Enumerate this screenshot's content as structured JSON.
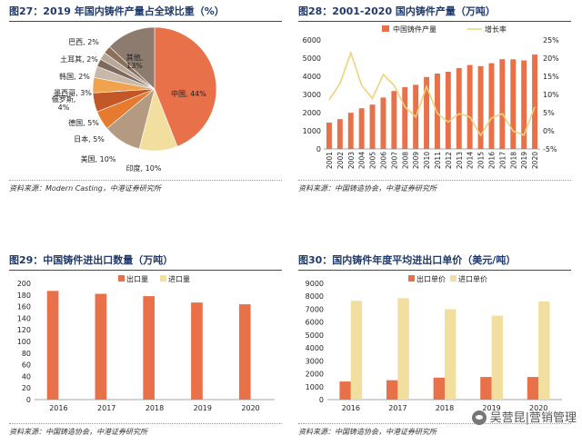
{
  "figure27": {
    "title": "图27：2019 年国内铸件产量占全球比重（%）",
    "source": "资料来源：Modern Casting，中港证券研究所",
    "chart_data": {
      "type": "pie",
      "title": "2019 年国内铸件产量占全球比重（%）",
      "slices": [
        {
          "label": "中国",
          "value": 44,
          "text": "中国, 44%",
          "color": "#e8714a"
        },
        {
          "label": "印度",
          "value": 10,
          "text": "印度, 10%",
          "color": "#f2dfa0"
        },
        {
          "label": "美国",
          "value": 10,
          "text": "美国, 10%",
          "color": "#b39a80"
        },
        {
          "label": "日本",
          "value": 5,
          "text": "日本, 5%",
          "color": "#e67a2e"
        },
        {
          "label": "德国",
          "value": 5,
          "text": "德国, 5%",
          "color": "#c25728"
        },
        {
          "label": "俄罗斯",
          "value": 4,
          "text": "俄罗斯,\n4%",
          "color": "#f0a24e"
        },
        {
          "label": "墨西哥",
          "value": 3,
          "text": "墨西哥, 3%",
          "color": "#c7b9aa"
        },
        {
          "label": "韩国",
          "value": 2,
          "text": "韩国, 2%",
          "color": "#7d6a5f"
        },
        {
          "label": "土耳其",
          "value": 2,
          "text": "土耳其, 2%",
          "color": "#b8a89a"
        },
        {
          "label": "巴西",
          "value": 2,
          "text": "巴西, 2%",
          "color": "#8a6f5a"
        },
        {
          "label": "其他",
          "value": 13,
          "text": "其他,\n13%",
          "color": "#8c7b6e"
        }
      ]
    }
  },
  "figure28": {
    "title": "图28：2001-2020 国内铸件产量（万吨）",
    "source": "资料来源：中国铸造协会，中港证券研究所",
    "chart_data": {
      "type": "bar",
      "categories": [
        "2001",
        "2002",
        "2003",
        "2004",
        "2005",
        "2006",
        "2007",
        "2008",
        "2009",
        "2010",
        "2011",
        "2012",
        "2013",
        "2014",
        "2015",
        "2016",
        "2017",
        "2018",
        "2019",
        "2020"
      ],
      "series": [
        {
          "name": "中国铸件产量",
          "kind": "bar",
          "axis": "left",
          "color": "#e8714a",
          "values": [
            1450,
            1640,
            1990,
            2240,
            2440,
            2830,
            3190,
            3400,
            3530,
            3960,
            4150,
            4250,
            4450,
            4620,
            4560,
            4720,
            4940,
            4935,
            4875,
            5195
          ]
        },
        {
          "name": "增长率",
          "kind": "line",
          "axis": "right",
          "color": "#f0d27a",
          "values": [
            8.5,
            13,
            21.5,
            12.5,
            8.9,
            15.5,
            12.5,
            6.6,
            3.8,
            12.2,
            4.8,
            2.4,
            4.7,
            3.8,
            -1.3,
            3.5,
            4.7,
            -0.1,
            -1.2,
            6.6
          ]
        }
      ],
      "ylim_left": [
        0,
        6000
      ],
      "yticks_left": [
        "0",
        "1000",
        "2000",
        "3000",
        "4000",
        "5000",
        "6000"
      ],
      "ylim_right": [
        -5,
        25
      ],
      "yticks_right": [
        "-5%",
        "0%",
        "5%",
        "10%",
        "15%",
        "20%",
        "25%"
      ],
      "legend": "top"
    }
  },
  "figure29": {
    "title": "图29：中国铸件进出口数量（万吨）",
    "source": "资料来源：中国铸造协会，中港证券研究所",
    "chart_data": {
      "type": "bar",
      "categories": [
        "2016",
        "2017",
        "2018",
        "2019",
        "2020"
      ],
      "series": [
        {
          "name": "出口量",
          "color": "#e8714a",
          "values": [
            187,
            182,
            178,
            167,
            164
          ]
        },
        {
          "name": "进口量",
          "color": "#f2dfa0",
          "values": [
            0,
            0,
            0,
            0,
            0
          ]
        }
      ],
      "ylim": [
        0,
        200
      ],
      "yticks": [
        "0",
        "20",
        "40",
        "60",
        "80",
        "100",
        "120",
        "140",
        "160",
        "180",
        "200"
      ],
      "legend": "top"
    }
  },
  "figure30": {
    "title": "图30：国内铸件年度平均进出口单价（美元/吨）",
    "source": "资料来源：中国铸造协会，中港证券研究所",
    "chart_data": {
      "type": "bar",
      "categories": [
        "2016",
        "2017",
        "2018",
        "2019",
        "2020"
      ],
      "series": [
        {
          "name": "出口单价",
          "color": "#e8714a",
          "values": [
            1400,
            1500,
            1700,
            1750,
            1750
          ]
        },
        {
          "name": "进口单价",
          "color": "#f2dfa0",
          "values": [
            7650,
            7850,
            7000,
            6500,
            7600
          ]
        }
      ],
      "ylim": [
        0,
        9000
      ],
      "yticks": [
        "0",
        "1000",
        "2000",
        "3000",
        "4000",
        "5000",
        "6000",
        "7000",
        "8000",
        "9000"
      ],
      "legend": "top"
    }
  },
  "watermark": "吴营昆|营销管理"
}
